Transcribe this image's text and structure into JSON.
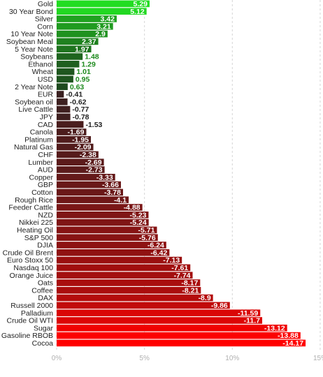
{
  "chart_data": {
    "type": "bar",
    "orientation": "horizontal",
    "categories": [
      "Gold",
      "30 Year Bond",
      "Silver",
      "Corn",
      "10 Year Note",
      "Soybean Meal",
      "5 Year Note",
      "Soybeans",
      "Ethanol",
      "Wheat",
      "USD",
      "2 Year Note",
      "EUR",
      "Soybean oil",
      "Live Cattle",
      "JPY",
      "CAD",
      "Canola",
      "Platinum",
      "Natural Gas",
      "CHF",
      "Lumber",
      "AUD",
      "Copper",
      "GBP",
      "Cotton",
      "Rough Rice",
      "Feeder Cattle",
      "NZD",
      "Nikkei 225",
      "Heating Oil",
      "S&P 500",
      "DJIA",
      "Crude Oil Brent",
      "Euro Stoxx 50",
      "Nasdaq 100",
      "Orange Juice",
      "Oats",
      "Coffee",
      "DAX",
      "Russell 2000",
      "Palladium",
      "Crude Oil WTI",
      "Sugar",
      "Gasoline RBOB",
      "Cocoa"
    ],
    "values": [
      5.29,
      5.12,
      3.42,
      3.21,
      2.9,
      2.37,
      1.97,
      1.48,
      1.29,
      1.01,
      0.95,
      0.63,
      -0.41,
      -0.62,
      -0.77,
      -0.78,
      -1.53,
      -1.69,
      -1.95,
      -2.09,
      -2.38,
      -2.69,
      -2.73,
      -3.33,
      -3.66,
      -3.78,
      -4.1,
      -4.88,
      -5.23,
      -5.24,
      -5.71,
      -5.76,
      -6.24,
      -6.42,
      -7.13,
      -7.61,
      -7.74,
      -8.17,
      -8.21,
      -8.9,
      -9.86,
      -11.59,
      -11.7,
      -13.12,
      -13.88,
      -14.17
    ],
    "value_labels": [
      "5.29",
      "5.12",
      "3.42",
      "3.21",
      "2.9",
      "2.37",
      "1.97",
      "1.48",
      "1.29",
      "1.01",
      "0.95",
      "0.63",
      "-0.41",
      "-0.62",
      "-0.77",
      "-0.78",
      "-1.53",
      "-1.69",
      "-1.95",
      "-2.09",
      "-2.38",
      "-2.69",
      "-2.73",
      "-3.33",
      "-3.66",
      "-3.78",
      "-4.1",
      "-4.88",
      "-5.23",
      "-5.24",
      "-5.71",
      "-5.76",
      "-6.24",
      "-6.42",
      "-7.13",
      "-7.61",
      "-7.74",
      "-8.17",
      "-8.21",
      "-8.9",
      "-9.86",
      "-11.59",
      "-11.7",
      "-13.12",
      "-13.88",
      "-14.17"
    ],
    "x_ticks": [
      0,
      5,
      10,
      15
    ],
    "x_tick_labels": [
      "0%",
      "5%",
      "10%",
      "15%"
    ],
    "xlim": [
      0,
      15
    ],
    "x_scale": "absolute value",
    "grid": "vertical dashed",
    "title": "",
    "xlabel": "",
    "ylabel": "",
    "colors": {
      "positive_max": "#22dd22",
      "positive_min": "#1e4a1e",
      "negative_min": "#3a2020",
      "negative_max": "#ff0000",
      "positive_label": "#1e8a1e",
      "negative_label": "#222222",
      "inside_label": "#ffffff"
    }
  }
}
